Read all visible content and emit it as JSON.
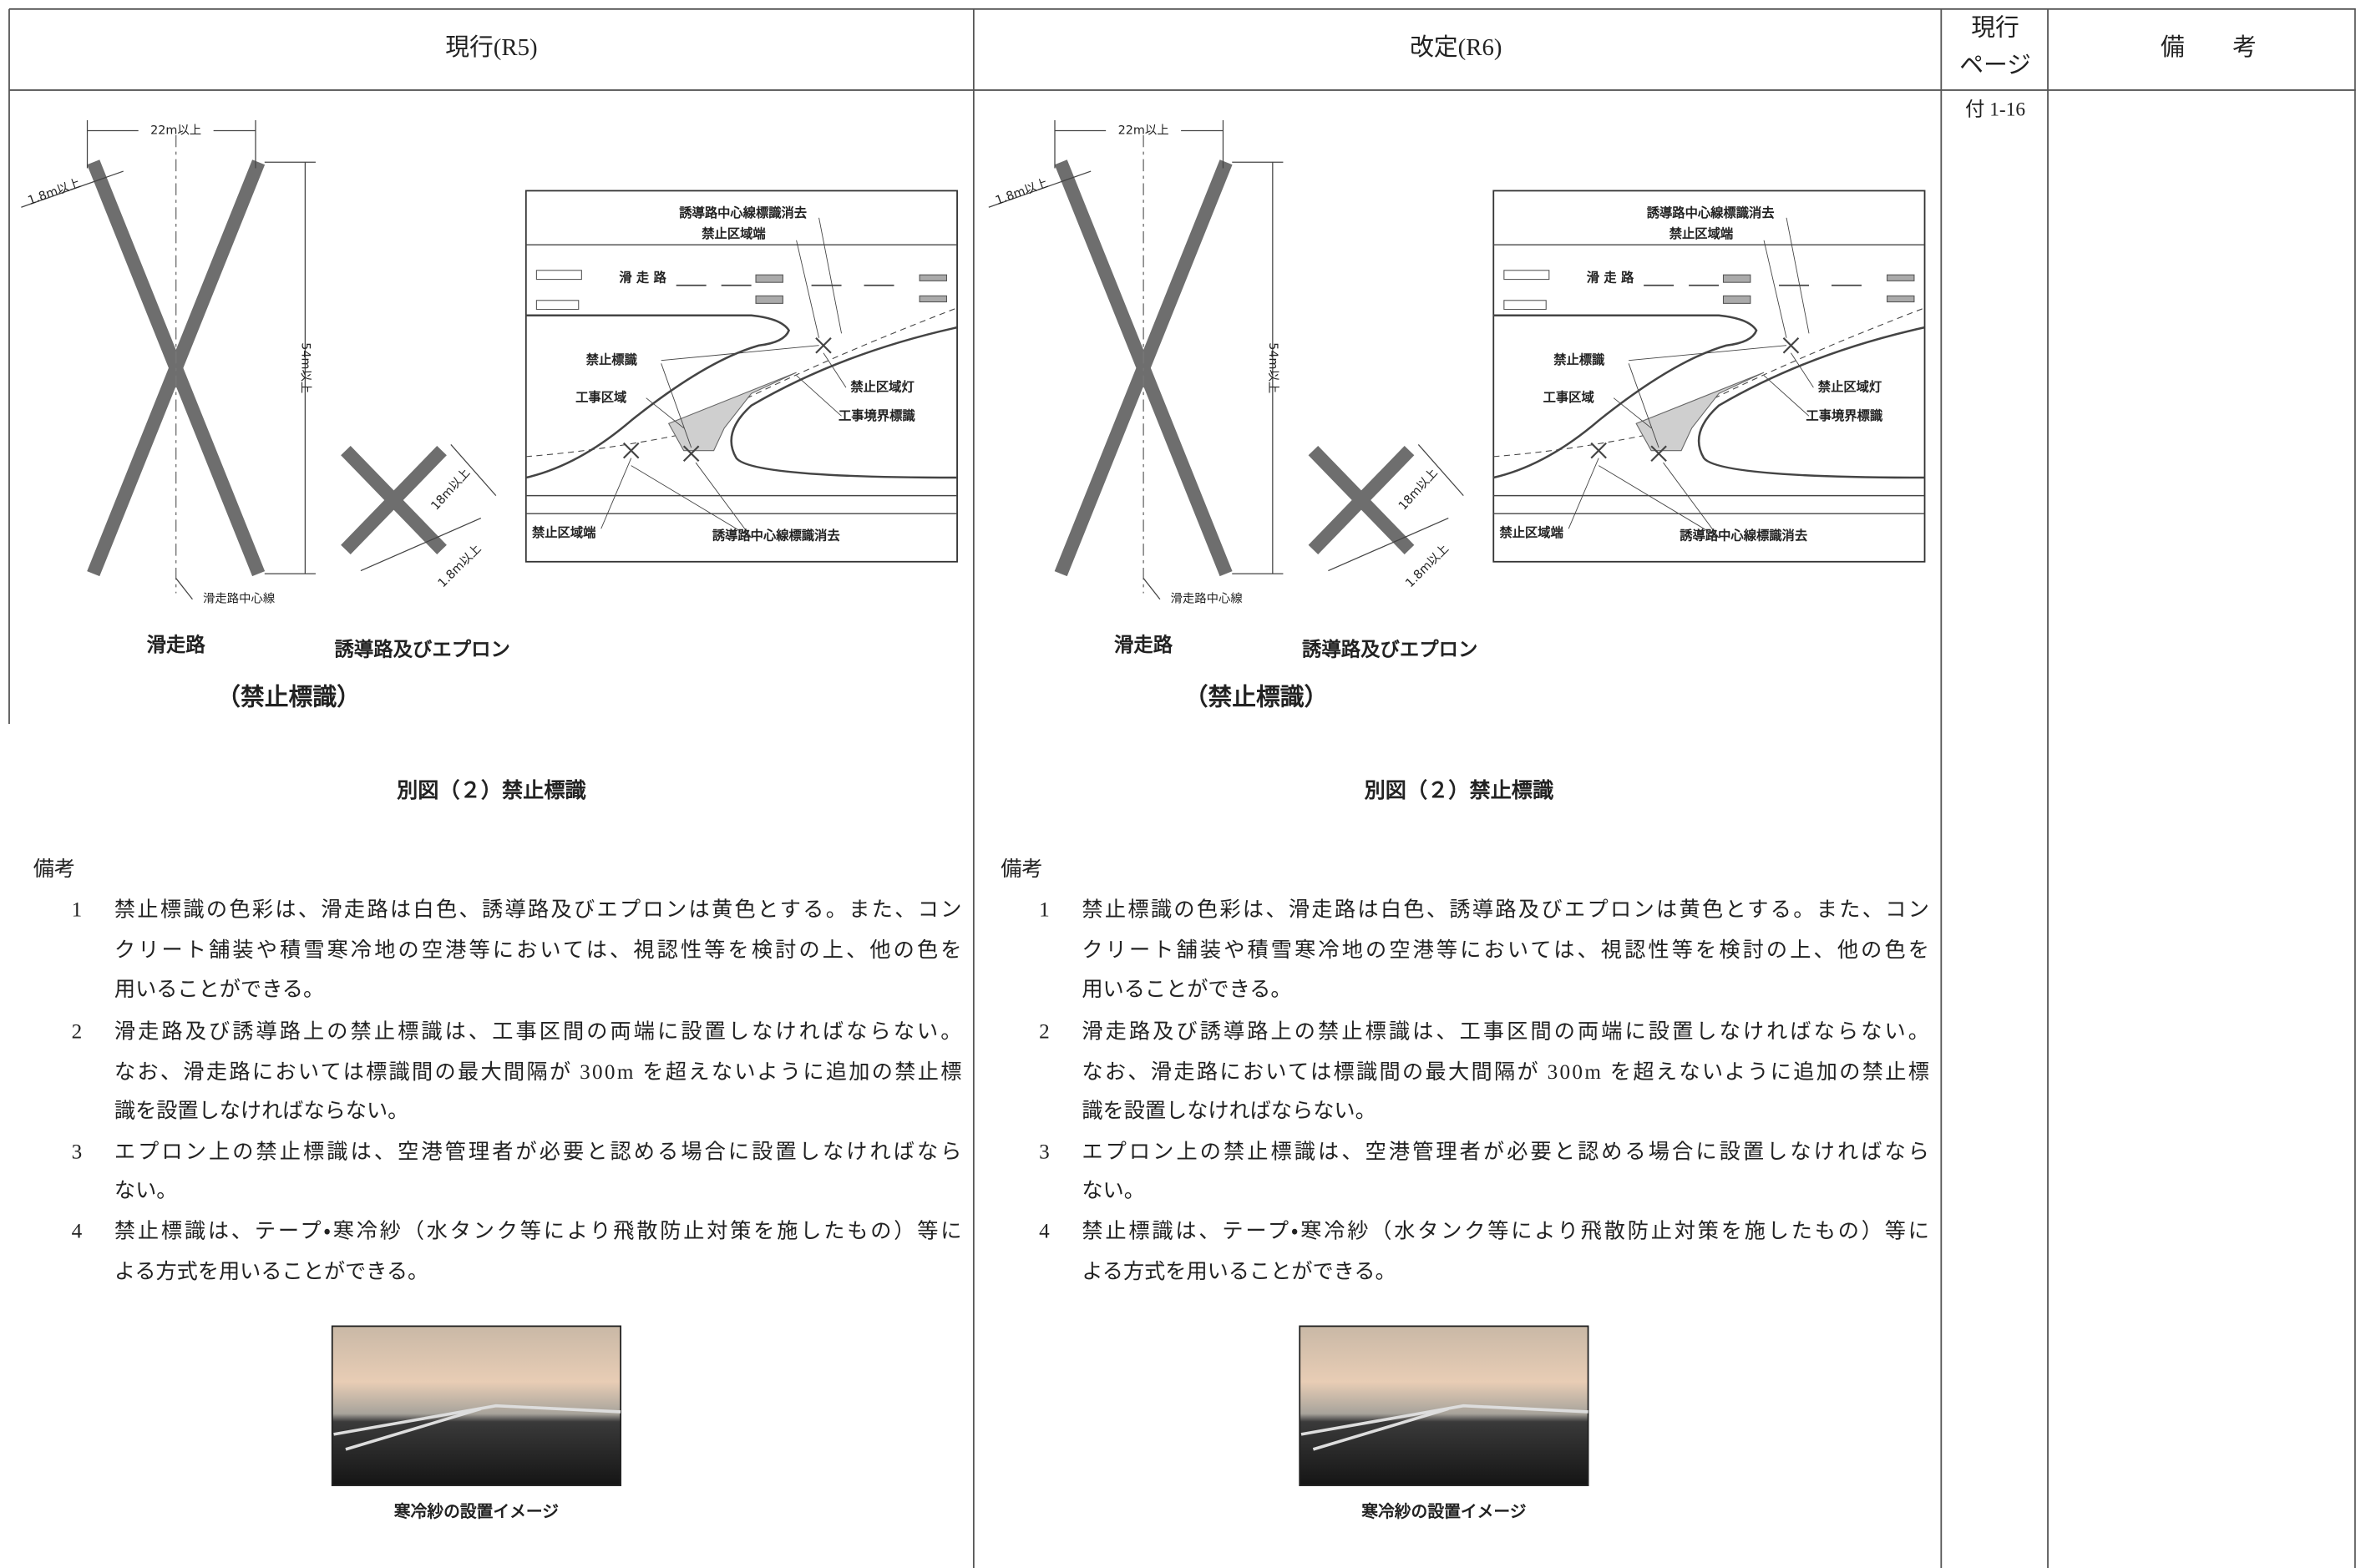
{
  "header": {
    "current": "現行(R5)",
    "revised": "改定(R6)",
    "page_lines": [
      "現行",
      "ページ"
    ],
    "remarks": "備　　考"
  },
  "page_ref": "付 1-16",
  "panels": [
    {
      "diagram": {
        "width_dim": "22m以上",
        "bar_width": "1.8m以上",
        "length_dim": "54m以上",
        "centerline": "滑走路中心線",
        "runway": "滑走路",
        "taxiway": "誘導路及びエプロン",
        "taxi_length": "18m以上",
        "taxi_bar_width": "1.8m以上",
        "sign_name": "（禁止標識）"
      },
      "schematic": {
        "top_erase": "誘導路中心線標識消去",
        "top_edge": "禁止区域端",
        "runway_label": "滑 走 路",
        "sign": "禁止標識",
        "work_area": "工事区域",
        "area_light": "禁止区域灯",
        "boundary_sign": "工事境界標識",
        "bottom_edge": "禁止区域端",
        "bottom_erase": "誘導路中心線標識消去"
      },
      "caption": "別図（２）禁止標識",
      "notes_heading": "備考",
      "notes": [
        {
          "num": "1",
          "lines": [
            "禁止標識の色彩は、滑走路は白色、誘導路及びエプロンは黄色とする。また、コン",
            "クリート舗装や積雪寒冷地の空港等においては、視認性等を検討の上、他の色を",
            "用いることができる。"
          ]
        },
        {
          "num": "2",
          "lines": [
            "滑走路及び誘導路上の禁止標識は、工事区間の両端に設置しなければならない。",
            "なお、滑走路においては標識間の最大間隔が 300m を超えないように追加の禁止標",
            "識を設置しなければならない。"
          ]
        },
        {
          "num": "3",
          "lines": [
            "エプロン上の禁止標識は、空港管理者が必要と認める場合に設置しなければなら",
            "ない。"
          ]
        },
        {
          "num": "4",
          "lines": [
            "禁止標識は、テープ・寒冷紗（水タンク等により飛散防止対策を施したもの）等に",
            "よる方式を用いることができる。"
          ]
        }
      ],
      "photo_caption": "寒冷紗の設置イメージ"
    },
    {
      "diagram": {
        "width_dim": "22m以上",
        "bar_width": "1.8m以上",
        "length_dim": "54m以上",
        "centerline": "滑走路中心線",
        "runway": "滑走路",
        "taxiway": "誘導路及びエプロン",
        "taxi_length": "18m以上",
        "taxi_bar_width": "1.8m以上",
        "sign_name": "（禁止標識）"
      },
      "schematic": {
        "top_erase": "誘導路中心線標識消去",
        "top_edge": "禁止区域端",
        "runway_label": "滑 走 路",
        "sign": "禁止標識",
        "work_area": "工事区域",
        "area_light": "禁止区域灯",
        "boundary_sign": "工事境界標識",
        "bottom_edge": "禁止区域端",
        "bottom_erase": "誘導路中心線標識消去"
      },
      "caption": "別図（２）禁止標識",
      "notes_heading": "備考",
      "notes": [
        {
          "num": "1",
          "lines": [
            "禁止標識の色彩は、滑走路は白色、誘導路及びエプロンは黄色とする。また、コン",
            "クリート舗装や積雪寒冷地の空港等においては、視認性等を検討の上、他の色を",
            "用いることができる。"
          ]
        },
        {
          "num": "2",
          "lines": [
            "滑走路及び誘導路上の禁止標識は、工事区間の両端に設置しなければならない。",
            "なお、滑走路においては標識間の最大間隔が 300m を超えないように追加の禁止標",
            "識を設置しなければならない。"
          ]
        },
        {
          "num": "3",
          "lines": [
            "エプロン上の禁止標識は、空港管理者が必要と認める場合に設置しなければなら",
            "ない。"
          ]
        },
        {
          "num": "4",
          "lines": [
            "禁止標識は、テープ・寒冷紗（水タンク等により飛散防止対策を施したもの）等に",
            "よる方式を用いることができる。"
          ]
        }
      ],
      "photo_caption": "寒冷紗の設置イメージ"
    }
  ]
}
